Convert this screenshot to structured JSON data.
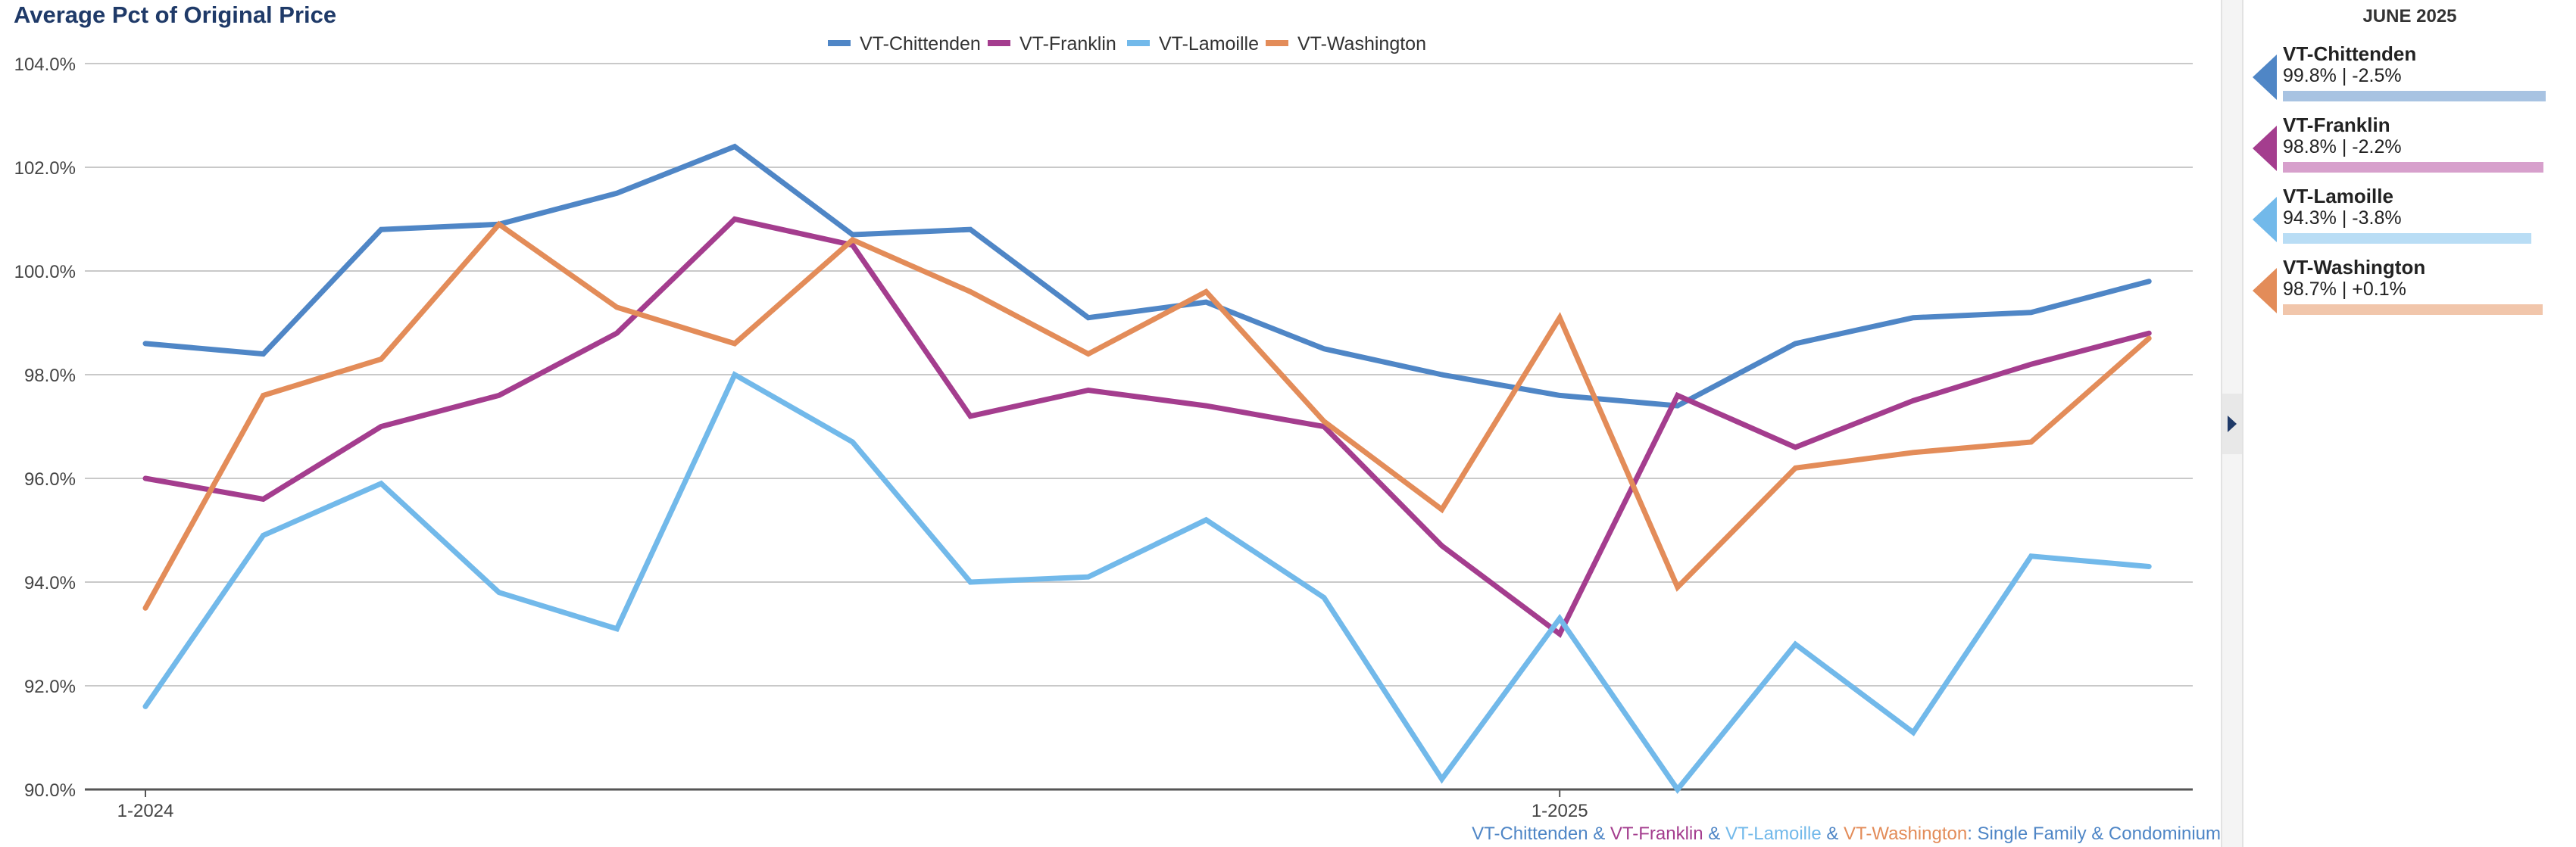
{
  "chart_data": {
    "type": "line",
    "title": "Average Pct of Original Price",
    "x": [
      "1-2024",
      "2-2024",
      "3-2024",
      "4-2024",
      "5-2024",
      "6-2024",
      "7-2024",
      "8-2024",
      "9-2024",
      "10-2024",
      "11-2024",
      "12-2024",
      "1-2025",
      "2-2025",
      "3-2025",
      "4-2025",
      "5-2025",
      "6-2025"
    ],
    "x_tick_labels": [
      "1-2024",
      "1-2025"
    ],
    "y_tick_labels": [
      "104.0%",
      "102.0%",
      "100.0%",
      "98.0%",
      "96.0%",
      "94.0%",
      "92.0%",
      "90.0%"
    ],
    "ylim": [
      90,
      104
    ],
    "y_unit": "%",
    "grid": true,
    "legend_position": "top-center",
    "series": [
      {
        "name": "VT-Chittenden",
        "color": "#4f86c6",
        "values": [
          98.6,
          98.4,
          100.8,
          100.9,
          101.5,
          102.4,
          100.7,
          100.8,
          99.1,
          99.4,
          98.5,
          98.0,
          97.6,
          97.4,
          98.6,
          99.1,
          99.2,
          99.8
        ]
      },
      {
        "name": "VT-Franklin",
        "color": "#a43d8e",
        "values": [
          96.0,
          95.6,
          97.0,
          97.6,
          98.8,
          101.0,
          100.5,
          97.2,
          97.7,
          97.4,
          97.0,
          94.7,
          93.0,
          97.6,
          96.6,
          97.5,
          98.2,
          98.8
        ]
      },
      {
        "name": "VT-Lamoille",
        "color": "#72b9ea",
        "values": [
          91.6,
          94.9,
          95.9,
          93.8,
          93.1,
          98.0,
          96.7,
          94.0,
          94.1,
          95.2,
          93.7,
          90.2,
          93.3,
          90.0,
          92.8,
          91.1,
          94.5,
          94.3
        ]
      },
      {
        "name": "VT-Washington",
        "color": "#e38c59",
        "values": [
          93.5,
          97.6,
          98.3,
          100.9,
          99.3,
          98.6,
          100.6,
          99.6,
          98.4,
          99.6,
          97.1,
          95.4,
          99.1,
          93.9,
          96.2,
          96.5,
          96.7,
          98.7
        ]
      }
    ],
    "footer": {
      "parts": [
        {
          "text": "VT-Chittenden",
          "color": "#4f86c6"
        },
        {
          "text": " & ",
          "color": "#4f86c6"
        },
        {
          "text": "VT-Franklin",
          "color": "#a43d8e"
        },
        {
          "text": " & ",
          "color": "#4f86c6"
        },
        {
          "text": "VT-Lamoille",
          "color": "#72b9ea"
        },
        {
          "text": " & ",
          "color": "#4f86c6"
        },
        {
          "text": "VT-Washington",
          "color": "#e38c59"
        },
        {
          "text": ": Single Family & Condominium",
          "color": "#4f86c6"
        }
      ]
    }
  },
  "sidebar": {
    "month": "JUNE 2025",
    "bar_scale_max": 100,
    "items": [
      {
        "name": "VT-Chittenden",
        "stat": "99.8% | -2.5%",
        "value": 99.8,
        "color": "#4f86c6",
        "bar_color": "#a8c3e2"
      },
      {
        "name": "VT-Franklin",
        "stat": "98.8% | -2.2%",
        "value": 98.8,
        "color": "#a43d8e",
        "bar_color": "#d7a0cc"
      },
      {
        "name": "VT-Lamoille",
        "stat": "94.3% | -3.8%",
        "value": 94.3,
        "color": "#72b9ea",
        "bar_color": "#b9ddf5"
      },
      {
        "name": "VT-Washington",
        "stat": "98.7% | +0.1%",
        "value": 98.7,
        "color": "#e38c59",
        "bar_color": "#f1c6ab"
      }
    ]
  }
}
